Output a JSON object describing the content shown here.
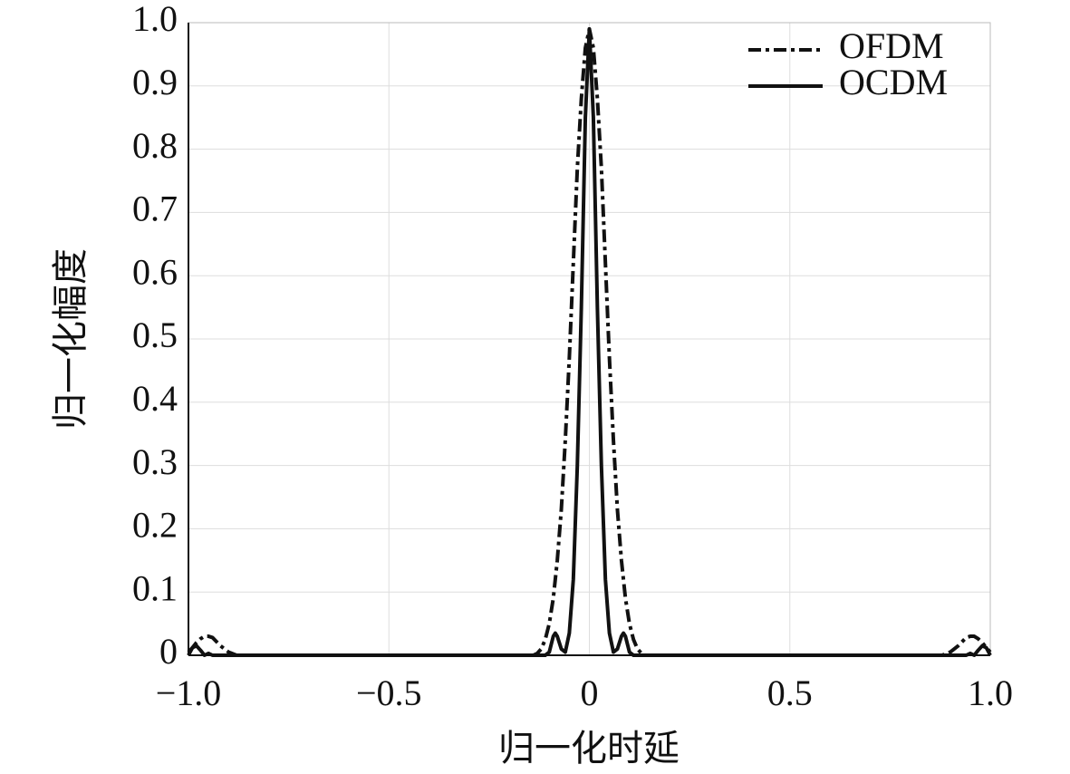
{
  "chart_data": {
    "type": "line",
    "xlabel": "归一化时延",
    "ylabel": "归一化幅度",
    "x": [
      -1,
      -0.99,
      -0.98,
      -0.97,
      -0.96,
      -0.95,
      -0.94,
      -0.92,
      -0.9,
      -0.88,
      -0.8,
      -0.6,
      -0.4,
      -0.2,
      -0.14,
      -0.13,
      -0.12,
      -0.11,
      -0.1,
      -0.09,
      -0.085,
      -0.08,
      -0.07,
      -0.06,
      -0.05,
      -0.04,
      -0.03,
      -0.02,
      -0.01,
      0,
      0.01,
      0.02,
      0.03,
      0.04,
      0.05,
      0.06,
      0.07,
      0.08,
      0.085,
      0.09,
      0.1,
      0.11,
      0.12,
      0.13,
      0.14,
      0.2,
      0.4,
      0.6,
      0.8,
      0.88,
      0.9,
      0.92,
      0.94,
      0.95,
      0.96,
      0.97,
      0.98,
      0.99,
      1
    ],
    "series": [
      {
        "name": "OFDM",
        "color": "#111111",
        "linestyle": "dash-dot",
        "values": [
          0.005,
          0.012,
          0.02,
          0.026,
          0.03,
          0.03,
          0.028,
          0.015,
          0.005,
          0,
          0,
          0,
          0,
          0,
          0,
          0.003,
          0.01,
          0.025,
          0.05,
          0.09,
          0.12,
          0.15,
          0.23,
          0.34,
          0.47,
          0.62,
          0.77,
          0.88,
          0.96,
          0.99,
          0.96,
          0.88,
          0.77,
          0.62,
          0.47,
          0.34,
          0.23,
          0.15,
          0.12,
          0.09,
          0.05,
          0.025,
          0.01,
          0.003,
          0,
          0,
          0,
          0,
          0,
          0,
          0.005,
          0.015,
          0.028,
          0.03,
          0.03,
          0.026,
          0.02,
          0.012,
          0.005
        ]
      },
      {
        "name": "OCDM",
        "color": "#111111",
        "linestyle": "solid",
        "values": [
          0,
          0.012,
          0.015,
          0.008,
          0,
          0.003,
          0,
          0,
          0,
          0,
          0,
          0,
          0,
          0,
          0,
          0,
          0,
          0,
          0.005,
          0.03,
          0.035,
          0.03,
          0.01,
          0.005,
          0.035,
          0.12,
          0.3,
          0.55,
          0.85,
          0.99,
          0.85,
          0.55,
          0.3,
          0.12,
          0.035,
          0.005,
          0.01,
          0.03,
          0.035,
          0.03,
          0.005,
          0,
          0,
          0,
          0,
          0,
          0,
          0,
          0,
          0,
          0,
          0,
          0,
          0.003,
          0,
          0.008,
          0.015,
          0.012,
          0
        ]
      }
    ],
    "xlim": [
      -1,
      1
    ],
    "xticks": [
      {
        "value": -1,
        "label": "−1.0"
      },
      {
        "value": -0.5,
        "label": "−0.5"
      },
      0,
      0.5,
      {
        "value": 1,
        "label": "1.0"
      }
    ],
    "ylim": [
      0,
      1
    ],
    "yticks": [
      0,
      0.1,
      0.2,
      0.3,
      0.4,
      0.5,
      0.6,
      0.7,
      0.8,
      0.9,
      {
        "value": 1,
        "label": "1.0"
      }
    ],
    "grid": true,
    "legend_position": "upper-right"
  }
}
